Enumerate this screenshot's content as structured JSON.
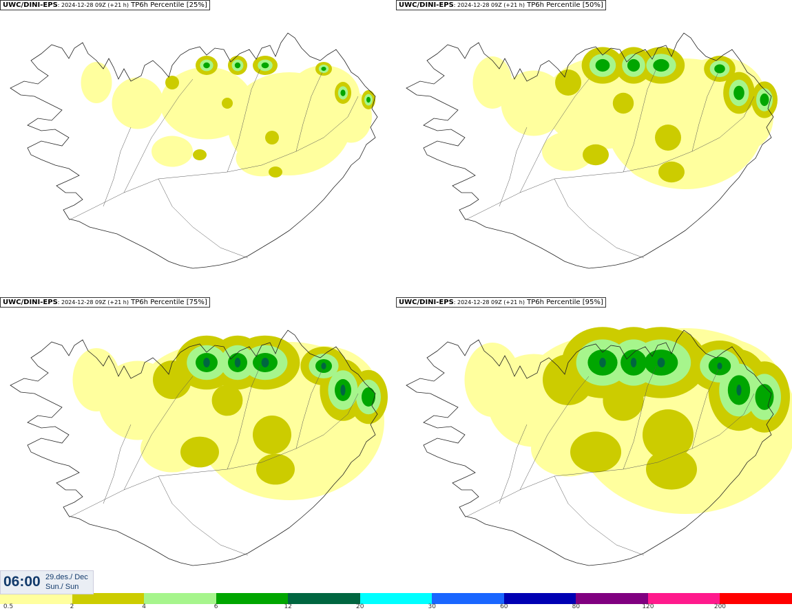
{
  "panels": [
    {
      "model": "UWC/DINI-EPS",
      "meta": ": 2024-12-28 09Z (+21 h)",
      "field": "TP6h Percentile [25%]",
      "level": 0
    },
    {
      "model": "UWC/DINI-EPS",
      "meta": ": 2024-12-28 09Z (+21 h)",
      "field": "TP6h Percentile [50%]",
      "level": 1
    },
    {
      "model": "UWC/DINI-EPS",
      "meta": ": 2024-12-28 09Z (+21 h)",
      "field": "TP6h Percentile [75%]",
      "level": 2
    },
    {
      "model": "UWC/DINI-EPS",
      "meta": ": 2024-12-28 09Z (+21 h)",
      "field": "TP6h Percentile [95%]",
      "level": 3
    }
  ],
  "valid_time": {
    "clock": "06:00",
    "date_line": "29.des./ Dec",
    "day_line": "Sun./ Sun"
  },
  "legend": {
    "colors": [
      "#ffff9e",
      "#cccc00",
      "#a6f58c",
      "#00a600",
      "#006640",
      "#00ffff",
      "#1a66ff",
      "#0000b3",
      "#800080",
      "#ff1a8c",
      "#ff0000"
    ],
    "labels": [
      "0.5",
      "2",
      "4",
      "6",
      "12",
      "20",
      "30",
      "60",
      "80",
      "120",
      "200"
    ]
  }
}
